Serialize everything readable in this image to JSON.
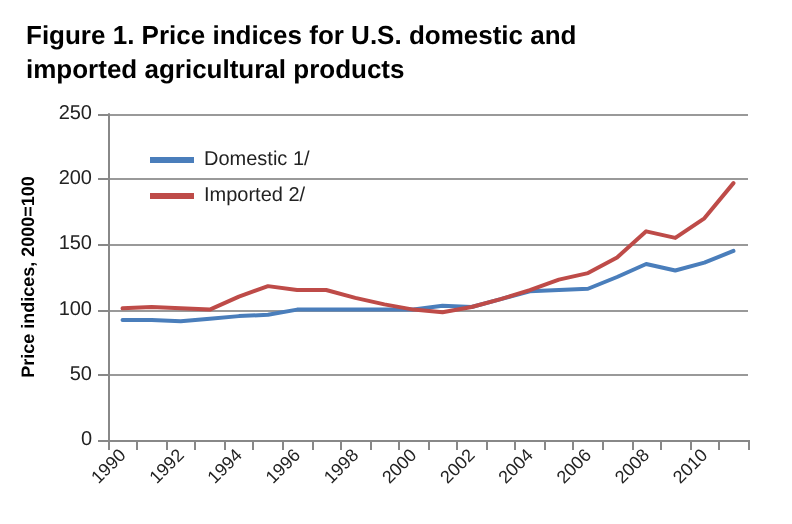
{
  "chart_data": {
    "type": "line",
    "title": "Figure 1. Price indices for U.S. domestic and imported agricultural products",
    "ylabel": "Price indices, 2000=100",
    "categories": [
      "1990",
      null,
      "1992",
      null,
      "1994",
      null,
      "1996",
      null,
      "1998",
      null,
      "2000",
      null,
      "2002",
      null,
      "2004",
      null,
      "2006",
      null,
      "2008",
      null,
      "2010",
      null
    ],
    "series": [
      {
        "name": "Domestic 1/",
        "color": "#4a7ebb",
        "values": [
          92,
          92,
          91,
          93,
          95,
          96,
          100,
          100,
          100,
          100,
          100,
          103,
          102,
          108,
          114,
          115,
          116,
          125,
          135,
          130,
          136,
          145
        ]
      },
      {
        "name": "Imported 2/",
        "color": "#be4b48",
        "values": [
          101,
          102,
          101,
          100,
          110,
          118,
          115,
          115,
          109,
          104,
          100,
          98,
          102,
          108,
          115,
          123,
          128,
          140,
          160,
          155,
          170,
          197
        ]
      }
    ],
    "ylim": [
      0,
      250
    ],
    "yticks": [
      0,
      50,
      100,
      150,
      200,
      250
    ],
    "grid": "y",
    "legend": "top left",
    "marker": "none",
    "line_style": "solid"
  }
}
